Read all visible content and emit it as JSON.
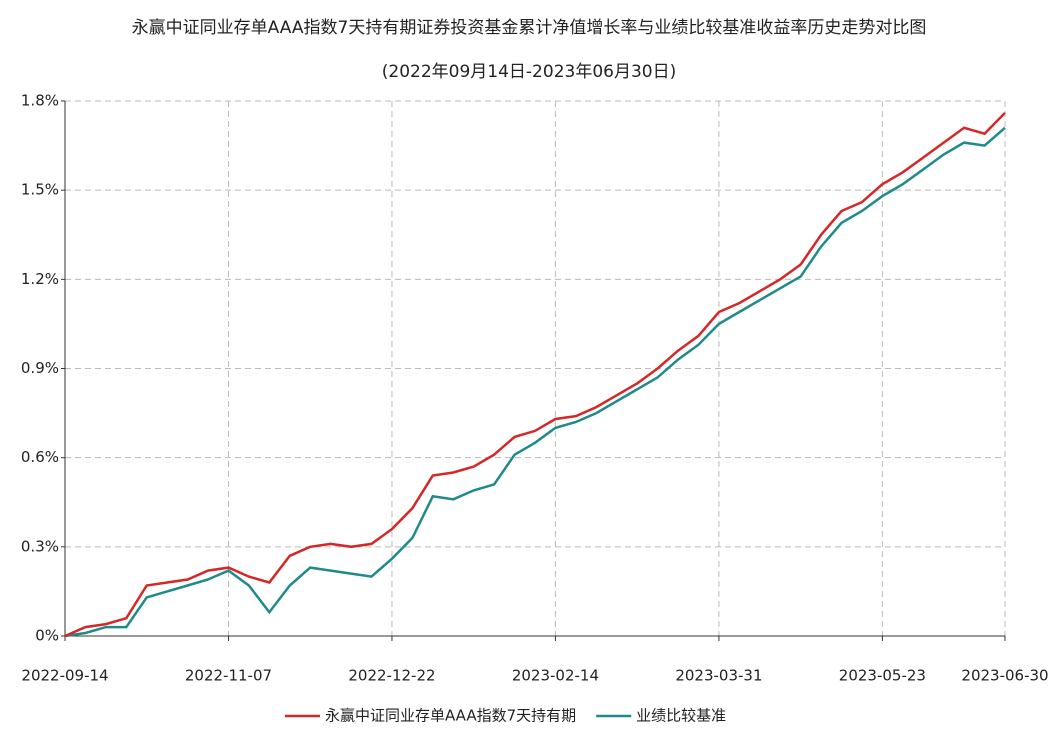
{
  "chart_data": {
    "type": "line",
    "title": "永赢中证同业存单AAA指数7天持有期证券投资基金累计净值增长率与业绩比较基准收益率历史走势对比图",
    "subtitle": "(2022年09月14日-2023年06月30日)",
    "categories": [
      "2022-09-14",
      null,
      null,
      null,
      null,
      null,
      null,
      null,
      "2022-11-07",
      null,
      null,
      null,
      null,
      null,
      null,
      null,
      "2022-12-22",
      null,
      null,
      null,
      null,
      null,
      null,
      null,
      "2023-02-14",
      null,
      null,
      null,
      null,
      null,
      null,
      null,
      "2023-03-31",
      null,
      null,
      null,
      null,
      null,
      null,
      null,
      "2023-05-23",
      null,
      null,
      null,
      null,
      null,
      "2023-06-30"
    ],
    "series": [
      {
        "name": "永赢中证同业存单AAA指数7天持有期",
        "color": "#d62728",
        "values": [
          0,
          0.03,
          0.04,
          0.06,
          0.17,
          0.18,
          0.19,
          0.22,
          0.23,
          0.2,
          0.18,
          0.27,
          0.3,
          0.31,
          0.3,
          0.31,
          0.36,
          0.43,
          0.54,
          0.55,
          0.57,
          0.61,
          0.67,
          0.69,
          0.73,
          0.74,
          0.77,
          0.81,
          0.85,
          0.9,
          0.96,
          1.01,
          1.09,
          1.12,
          1.16,
          1.2,
          1.25,
          1.35,
          1.43,
          1.46,
          1.52,
          1.56,
          1.61,
          1.66,
          1.71,
          1.69,
          1.76
        ]
      },
      {
        "name": "业绩比较基准",
        "color": "#1f8a8a",
        "values": [
          0,
          0.01,
          0.03,
          0.03,
          0.13,
          0.15,
          0.17,
          0.19,
          0.22,
          0.17,
          0.08,
          0.17,
          0.23,
          0.22,
          0.21,
          0.2,
          0.26,
          0.33,
          0.47,
          0.46,
          0.49,
          0.51,
          0.61,
          0.65,
          0.7,
          0.72,
          0.75,
          0.79,
          0.83,
          0.87,
          0.93,
          0.98,
          1.05,
          1.09,
          1.13,
          1.17,
          1.21,
          1.31,
          1.39,
          1.43,
          1.48,
          1.52,
          1.57,
          1.62,
          1.66,
          1.65,
          1.71
        ]
      }
    ],
    "ylim": [
      0,
      1.8
    ],
    "yticks": [
      {
        "value": 0,
        "label": "0%"
      },
      {
        "value": 0.3,
        "label": "0.3%"
      },
      {
        "value": 0.6,
        "label": "0.6%"
      },
      {
        "value": 0.9,
        "label": "0.9%"
      },
      {
        "value": 1.2,
        "label": "1.2%"
      },
      {
        "value": 1.5,
        "label": "1.5%"
      },
      {
        "value": 1.8,
        "label": "1.8%"
      }
    ],
    "grid": true,
    "legend": "bottom"
  }
}
